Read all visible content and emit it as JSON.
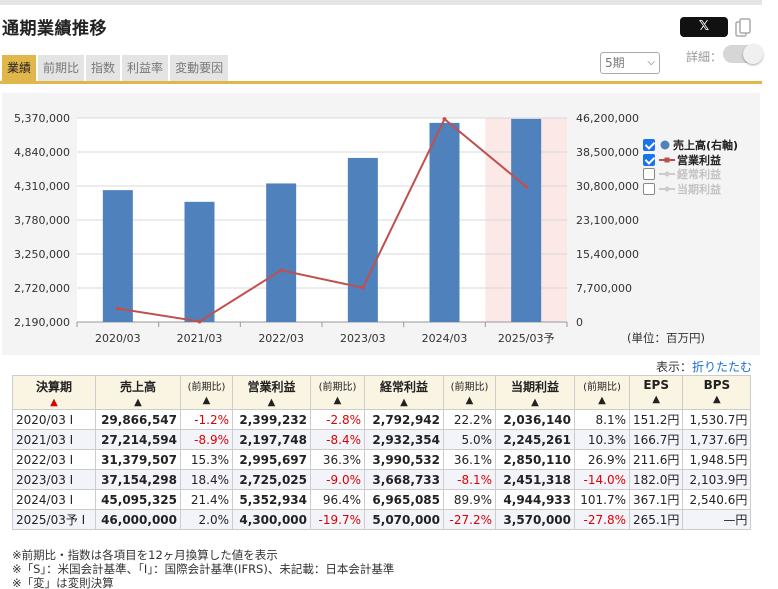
{
  "title": "通期業績推移",
  "share": {
    "x_label": "𝕏",
    "copy_icon": "copy-icon"
  },
  "tabs": [
    {
      "label": "業績",
      "active": true
    },
    {
      "label": "前期比",
      "active": false
    },
    {
      "label": "指数",
      "active": false
    },
    {
      "label": "利益率",
      "active": false
    },
    {
      "label": "変動要因",
      "active": false
    }
  ],
  "period_select": {
    "value": "5期",
    "icon": "chevron-down-icon"
  },
  "detail_toggle": {
    "label": "詳細：",
    "on": false
  },
  "colors": {
    "bar": "#4f81bd",
    "line": "#c0504d",
    "forecast_band": "#fde8e8",
    "accent": "#e1b64a",
    "negative": "#dd0000"
  },
  "chart_data": {
    "type": "bar",
    "categories": [
      "2020/03",
      "2021/03",
      "2022/03",
      "2023/03",
      "2024/03",
      "2025/03予"
    ],
    "series": [
      {
        "name": "売上高(右軸)",
        "type": "bar",
        "axis": "right",
        "visible": true,
        "values": [
          29866547,
          27214594,
          31379507,
          37154298,
          45095325,
          46000000
        ]
      },
      {
        "name": "営業利益",
        "type": "line",
        "axis": "left",
        "visible": true,
        "values": [
          2399232,
          2197748,
          2995697,
          2725025,
          5352934,
          4300000
        ]
      },
      {
        "name": "経常利益",
        "type": "line",
        "axis": "left",
        "visible": false,
        "values": [
          2792942,
          2932354,
          3990532,
          3668733,
          6965085,
          5070000
        ]
      },
      {
        "name": "当期利益",
        "type": "line",
        "axis": "left",
        "visible": false,
        "values": [
          2036140,
          2245261,
          2850110,
          2451318,
          4944933,
          3570000
        ]
      }
    ],
    "left_axis": {
      "min": 2190000,
      "max": 5370000,
      "ticks": [
        "2,190,000",
        "2,720,000",
        "3,250,000",
        "3,780,000",
        "4,310,000",
        "4,840,000",
        "5,370,000"
      ]
    },
    "right_axis": {
      "min": 0,
      "max": 46200000,
      "ticks": [
        "0",
        "7,700,000",
        "15,400,000",
        "23,100,000",
        "30,800,000",
        "38,500,000",
        "46,200,000"
      ]
    },
    "forecast_index": 5,
    "grid": true,
    "legend": "right"
  },
  "unit_label": "(単位：百万円)",
  "display": {
    "label": "表示：",
    "link": "折りたたむ"
  },
  "table": {
    "headers": [
      "決算期",
      "売上高",
      "(前期比)",
      "営業利益",
      "(前期比)",
      "経常利益",
      "(前期比)",
      "当期利益",
      "(前期比)",
      "EPS",
      "BPS"
    ],
    "rows": [
      [
        "2020/03 I",
        "29,866,547",
        "-1.2%",
        "2,399,232",
        "-2.8%",
        "2,792,942",
        "22.2%",
        "2,036,140",
        "8.1%",
        "151.2円",
        "1,530.7円"
      ],
      [
        "2021/03 I",
        "27,214,594",
        "-8.9%",
        "2,197,748",
        "-8.4%",
        "2,932,354",
        "5.0%",
        "2,245,261",
        "10.3%",
        "166.7円",
        "1,737.6円"
      ],
      [
        "2022/03 I",
        "31,379,507",
        "15.3%",
        "2,995,697",
        "36.3%",
        "3,990,532",
        "36.1%",
        "2,850,110",
        "26.9%",
        "211.6円",
        "1,948.5円"
      ],
      [
        "2023/03 I",
        "37,154,298",
        "18.4%",
        "2,725,025",
        "-9.0%",
        "3,668,733",
        "-8.1%",
        "2,451,318",
        "-14.0%",
        "182.0円",
        "2,103.9円"
      ],
      [
        "2024/03 I",
        "45,095,325",
        "21.4%",
        "5,352,934",
        "96.4%",
        "6,965,085",
        "89.9%",
        "4,944,933",
        "101.7%",
        "367.1円",
        "2,540.6円"
      ],
      [
        "2025/03予 I",
        "46,000,000",
        "2.0%",
        "4,300,000",
        "-19.7%",
        "5,070,000",
        "-27.2%",
        "3,570,000",
        "-27.8%",
        "265.1円",
        "—円"
      ]
    ]
  },
  "notes": [
    "※前期比・指数は各項目を12ヶ月換算した値を表示",
    "※「S」：米国会計基準、「I」：国際会計基準(IFRS)、未記載：日本会計基準",
    "※「変」は変則決算"
  ]
}
